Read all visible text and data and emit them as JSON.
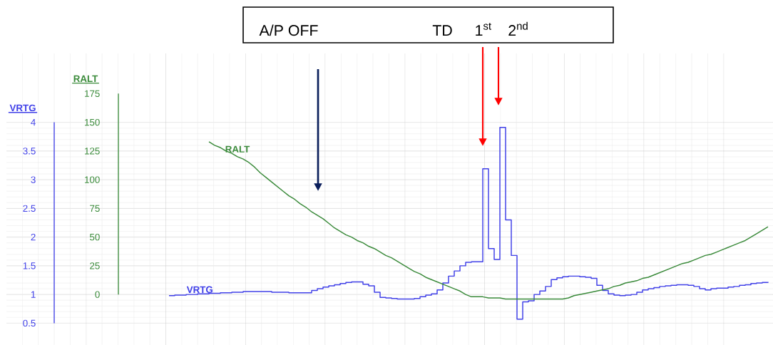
{
  "chart_data": {
    "type": "line",
    "ylabel": "VRTG",
    "y2label": "RALT",
    "categories": [
      null,
      null,
      null,
      null,
      null,
      null,
      null,
      null,
      null,
      null,
      null,
      null,
      null,
      null,
      null,
      null,
      null,
      null,
      null,
      null,
      null,
      null,
      null,
      null,
      null,
      null,
      null,
      null,
      null,
      null,
      null,
      null,
      null,
      null,
      null,
      null,
      null,
      null,
      null,
      null,
      null,
      null,
      null,
      null,
      null,
      null,
      null,
      null,
      null,
      null,
      null,
      null,
      null,
      null,
      null,
      null,
      null,
      null,
      null,
      null,
      null,
      null,
      null,
      null,
      null,
      null,
      null,
      null,
      null,
      null,
      null,
      null,
      null,
      null,
      null,
      null,
      null,
      null,
      null,
      null,
      null,
      null,
      null,
      null,
      null,
      null,
      null,
      null,
      null,
      null,
      null,
      null,
      null,
      null,
      null,
      null,
      null,
      null,
      null,
      null,
      null,
      null,
      null,
      null,
      null,
      null
    ],
    "ylim": [
      0.12,
      5.2
    ],
    "yticks": [
      0.5,
      1,
      1.5,
      2,
      2.5,
      3,
      3.5,
      4
    ],
    "y2lim": [
      -44,
      210
    ],
    "y2ticks": [
      0,
      25,
      50,
      75,
      100,
      125,
      150,
      175
    ],
    "grid": true,
    "series": [
      {
        "name": "VRTG",
        "type": "step",
        "color": "#4040e8",
        "values": [
          0.98,
          0.99,
          0.99,
          1.0,
          1.0,
          1.01,
          1.01,
          1.02,
          1.02,
          1.03,
          1.03,
          1.04,
          1.04,
          1.05,
          1.05,
          1.05,
          1.05,
          1.05,
          1.04,
          1.04,
          1.04,
          1.03,
          1.03,
          1.03,
          1.03,
          1.07,
          1.1,
          1.13,
          1.15,
          1.17,
          1.19,
          1.21,
          1.22,
          1.22,
          1.18,
          1.15,
          1.04,
          0.95,
          0.94,
          0.93,
          0.92,
          0.92,
          0.92,
          0.93,
          0.96,
          0.99,
          1.01,
          1.08,
          1.2,
          1.32,
          1.41,
          1.5,
          1.56,
          1.57,
          1.57,
          3.19,
          1.8,
          1.61,
          3.91,
          2.3,
          1.68,
          0.57,
          0.87,
          0.89,
          1.0,
          1.06,
          1.14,
          1.26,
          1.29,
          1.31,
          1.32,
          1.32,
          1.31,
          1.3,
          1.28,
          1.16,
          1.07,
          1.01,
          0.99,
          0.98,
          0.99,
          1.0,
          1.04,
          1.08,
          1.1,
          1.12,
          1.14,
          1.15,
          1.16,
          1.17,
          1.17,
          1.16,
          1.14,
          1.1,
          1.08,
          1.1,
          1.11,
          1.11,
          1.13,
          1.14,
          1.16,
          1.17,
          1.19,
          1.2,
          1.21,
          1.22
        ]
      },
      {
        "name": "RALT",
        "axis": "y2",
        "color": "#3a8a3a",
        "values": [
          null,
          null,
          null,
          null,
          null,
          null,
          null,
          133,
          130,
          128,
          125,
          123,
          120,
          118,
          115,
          111,
          106,
          102,
          98,
          94,
          90,
          86,
          83,
          79,
          76,
          72,
          69,
          66,
          62,
          58,
          55,
          52,
          50,
          47,
          45,
          42,
          40,
          37,
          34,
          32,
          29,
          26,
          23,
          20,
          18,
          15,
          13,
          11,
          9,
          7,
          5,
          3,
          0,
          -2,
          -2,
          -2,
          -3,
          -3,
          -3,
          -4,
          -4,
          -4,
          -4,
          -4,
          -4,
          -4,
          -4,
          -4,
          -4,
          -4,
          -3,
          -1,
          0,
          1,
          2,
          3,
          4,
          5,
          7,
          8,
          10,
          11,
          12,
          14,
          15,
          17,
          19,
          21,
          23,
          25,
          27,
          28,
          30,
          32,
          34,
          35,
          37,
          39,
          41,
          43,
          45,
          47,
          50,
          53,
          56,
          59
        ]
      }
    ],
    "annotations": [
      "A/P OFF",
      "TD",
      "1$^{st}$",
      "2$^{nd}$"
    ]
  }
}
